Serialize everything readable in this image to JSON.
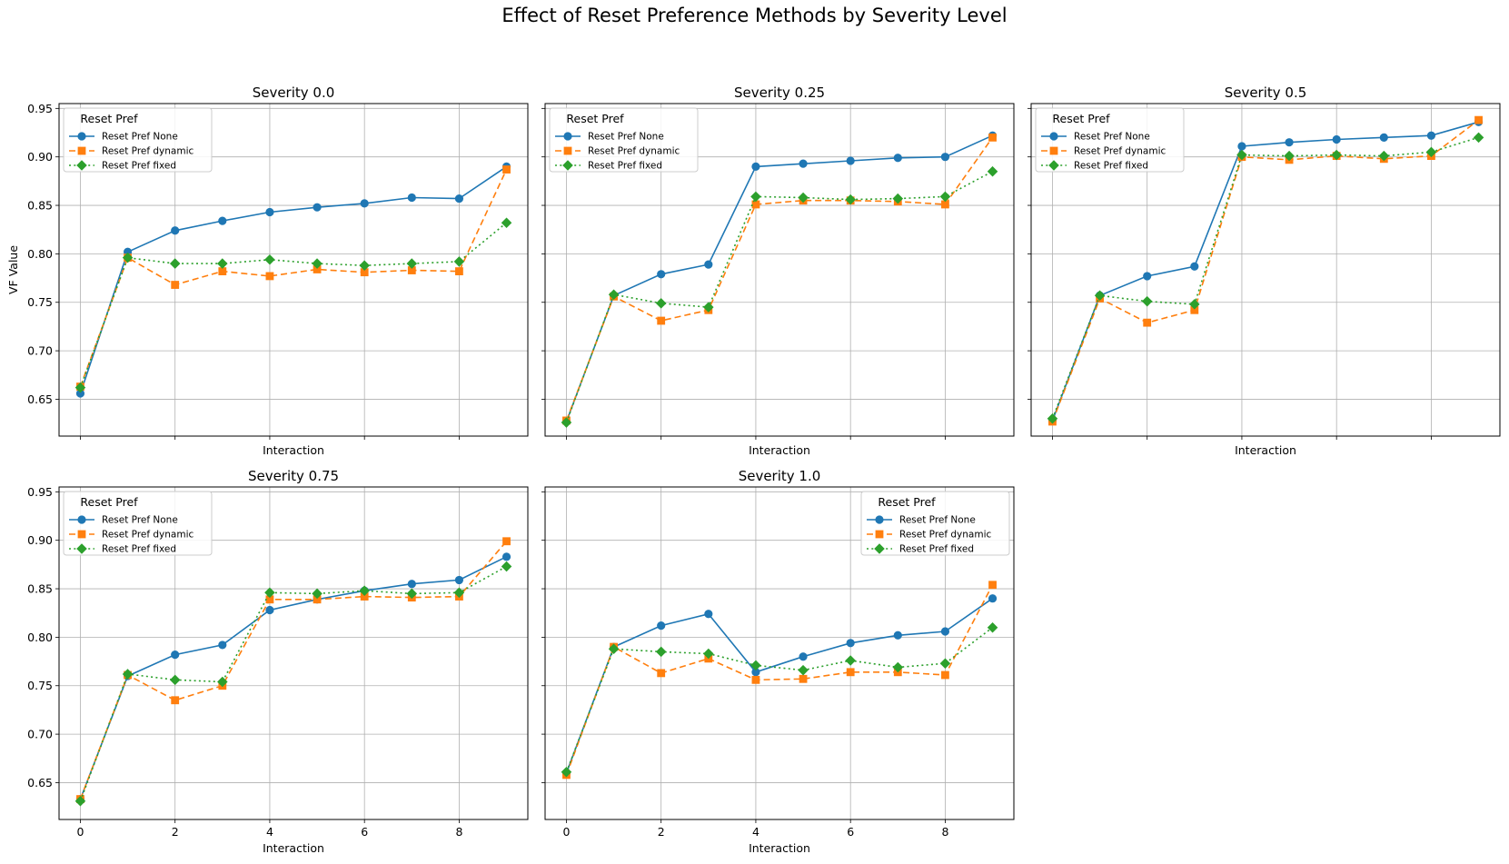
{
  "figure": {
    "title": "Effect of Reset Preference Methods by Severity Level"
  },
  "styles": {
    "series_colors": [
      "#1f77b4",
      "#ff7f0e",
      "#2ca02c"
    ],
    "series_markers": [
      "circle",
      "square",
      "diamond"
    ],
    "series_dashes": [
      "solid",
      "dashed",
      "dotted"
    ],
    "grid_color": "#b0b0b0"
  },
  "chart_data": [
    {
      "type": "line",
      "title": "Severity 0.0",
      "xlabel": "Interaction",
      "ylabel": "VF Value",
      "x": [
        0,
        1,
        2,
        3,
        4,
        5,
        6,
        7,
        8,
        9
      ],
      "xlim": [
        -0.45,
        9.45
      ],
      "ylim": [
        0.612,
        0.955
      ],
      "xticks": [
        0,
        2,
        4,
        6,
        8
      ],
      "xtick_labels": [],
      "yticks": [
        0.65,
        0.7,
        0.75,
        0.8,
        0.85,
        0.9,
        0.95
      ],
      "ytick_labels": [
        "0.65",
        "0.70",
        "0.75",
        "0.80",
        "0.85",
        "0.90",
        "0.95"
      ],
      "grid": true,
      "legend": {
        "title": "Reset Pref",
        "position": "top-left"
      },
      "series": [
        {
          "name": "Reset Pref None",
          "values": [
            0.656,
            0.802,
            0.824,
            0.834,
            0.843,
            0.848,
            0.852,
            0.858,
            0.857,
            0.89
          ]
        },
        {
          "name": "Reset Pref dynamic",
          "values": [
            0.663,
            0.796,
            0.768,
            0.782,
            0.777,
            0.784,
            0.781,
            0.783,
            0.782,
            0.887
          ]
        },
        {
          "name": "Reset Pref fixed",
          "values": [
            0.662,
            0.796,
            0.79,
            0.79,
            0.794,
            0.79,
            0.788,
            0.79,
            0.792,
            0.832
          ]
        }
      ]
    },
    {
      "type": "line",
      "title": "Severity 0.25",
      "xlabel": "Interaction",
      "ylabel": "",
      "x": [
        0,
        1,
        2,
        3,
        4,
        5,
        6,
        7,
        8,
        9
      ],
      "xlim": [
        -0.45,
        9.45
      ],
      "ylim": [
        0.612,
        0.955
      ],
      "xticks": [
        0,
        2,
        4,
        6,
        8
      ],
      "xtick_labels": [],
      "yticks": [
        0.65,
        0.7,
        0.75,
        0.8,
        0.85,
        0.9,
        0.95
      ],
      "ytick_labels": [],
      "grid": true,
      "legend": {
        "title": "Reset Pref",
        "position": "top-left"
      },
      "series": [
        {
          "name": "Reset Pref None",
          "values": [
            0.627,
            0.757,
            0.779,
            0.789,
            0.89,
            0.893,
            0.896,
            0.899,
            0.9,
            0.922
          ]
        },
        {
          "name": "Reset Pref dynamic",
          "values": [
            0.628,
            0.756,
            0.731,
            0.742,
            0.851,
            0.855,
            0.855,
            0.854,
            0.851,
            0.92
          ]
        },
        {
          "name": "Reset Pref fixed",
          "values": [
            0.626,
            0.758,
            0.749,
            0.745,
            0.859,
            0.858,
            0.856,
            0.857,
            0.859,
            0.885
          ]
        }
      ]
    },
    {
      "type": "line",
      "title": "Severity 0.5",
      "xlabel": "Interaction",
      "ylabel": "",
      "x": [
        0,
        1,
        2,
        3,
        4,
        5,
        6,
        7,
        8,
        9
      ],
      "xlim": [
        -0.45,
        9.45
      ],
      "ylim": [
        0.612,
        0.955
      ],
      "xticks": [
        0,
        2,
        4,
        6,
        8
      ],
      "xtick_labels": [],
      "yticks": [
        0.65,
        0.7,
        0.75,
        0.8,
        0.85,
        0.9,
        0.95
      ],
      "ytick_labels": [],
      "grid": true,
      "legend": {
        "title": "Reset Pref",
        "position": "top-left"
      },
      "series": [
        {
          "name": "Reset Pref None",
          "values": [
            0.628,
            0.757,
            0.777,
            0.787,
            0.911,
            0.915,
            0.918,
            0.92,
            0.922,
            0.936
          ]
        },
        {
          "name": "Reset Pref dynamic",
          "values": [
            0.627,
            0.754,
            0.729,
            0.742,
            0.9,
            0.897,
            0.901,
            0.898,
            0.901,
            0.938
          ]
        },
        {
          "name": "Reset Pref fixed",
          "values": [
            0.63,
            0.757,
            0.751,
            0.748,
            0.902,
            0.901,
            0.902,
            0.901,
            0.905,
            0.92
          ]
        }
      ]
    },
    {
      "type": "line",
      "title": "Severity 0.75",
      "xlabel": "Interaction",
      "ylabel": "",
      "x": [
        0,
        1,
        2,
        3,
        4,
        5,
        6,
        7,
        8,
        9
      ],
      "xlim": [
        -0.45,
        9.45
      ],
      "ylim": [
        0.612,
        0.955
      ],
      "xticks": [
        0,
        2,
        4,
        6,
        8
      ],
      "xtick_labels": [
        "0",
        "2",
        "4",
        "6",
        "8"
      ],
      "yticks": [
        0.65,
        0.7,
        0.75,
        0.8,
        0.85,
        0.9,
        0.95
      ],
      "ytick_labels": [
        "0.65",
        "0.70",
        "0.75",
        "0.80",
        "0.85",
        "0.90",
        "0.95"
      ],
      "grid": true,
      "legend": {
        "title": "Reset Pref",
        "position": "top-left"
      },
      "series": [
        {
          "name": "Reset Pref None",
          "values": [
            0.633,
            0.76,
            0.782,
            0.792,
            0.828,
            0.839,
            0.848,
            0.855,
            0.859,
            0.883
          ]
        },
        {
          "name": "Reset Pref dynamic",
          "values": [
            0.633,
            0.761,
            0.735,
            0.75,
            0.839,
            0.839,
            0.842,
            0.841,
            0.842,
            0.899
          ]
        },
        {
          "name": "Reset Pref fixed",
          "values": [
            0.631,
            0.762,
            0.756,
            0.754,
            0.846,
            0.845,
            0.848,
            0.845,
            0.846,
            0.873
          ]
        }
      ]
    },
    {
      "type": "line",
      "title": "Severity 1.0",
      "xlabel": "Interaction",
      "ylabel": "",
      "x": [
        0,
        1,
        2,
        3,
        4,
        5,
        6,
        7,
        8,
        9
      ],
      "xlim": [
        -0.45,
        9.45
      ],
      "ylim": [
        0.612,
        0.955
      ],
      "xticks": [
        0,
        2,
        4,
        6,
        8
      ],
      "xtick_labels": [
        "0",
        "2",
        "4",
        "6",
        "8"
      ],
      "yticks": [
        0.65,
        0.7,
        0.75,
        0.8,
        0.85,
        0.9,
        0.95
      ],
      "ytick_labels": [],
      "grid": true,
      "legend": {
        "title": "Reset Pref",
        "position": "top-right"
      },
      "series": [
        {
          "name": "Reset Pref None",
          "values": [
            0.66,
            0.79,
            0.812,
            0.824,
            0.764,
            0.78,
            0.794,
            0.802,
            0.806,
            0.84
          ]
        },
        {
          "name": "Reset Pref dynamic",
          "values": [
            0.658,
            0.79,
            0.763,
            0.778,
            0.756,
            0.757,
            0.764,
            0.764,
            0.761,
            0.854
          ]
        },
        {
          "name": "Reset Pref fixed",
          "values": [
            0.661,
            0.788,
            0.785,
            0.783,
            0.771,
            0.766,
            0.776,
            0.769,
            0.773,
            0.81
          ]
        }
      ]
    }
  ]
}
